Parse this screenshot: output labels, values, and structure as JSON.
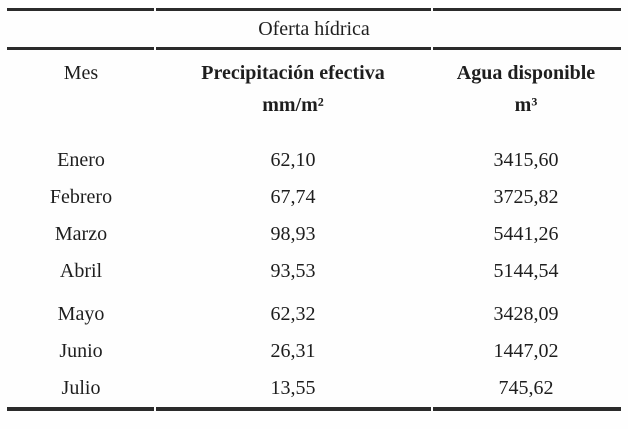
{
  "table": {
    "title": "Oferta hídrica",
    "columns": {
      "mes": {
        "label": "Mes",
        "unit": ""
      },
      "precipitacion": {
        "label": "Precipitación efectiva",
        "unit": "mm/m²"
      },
      "agua": {
        "label": "Agua disponible",
        "unit": "m³"
      }
    },
    "rows": [
      {
        "mes": "Enero",
        "precipitacion": "62,10",
        "agua": "3415,60"
      },
      {
        "mes": "Febrero",
        "precipitacion": "67,74",
        "agua": "3725,82"
      },
      {
        "mes": "Marzo",
        "precipitacion": "98,93",
        "agua": "5441,26"
      },
      {
        "mes": "Abril",
        "precipitacion": "93,53",
        "agua": "5144,54"
      },
      {
        "mes": "Mayo",
        "precipitacion": "62,32",
        "agua": "3428,09"
      },
      {
        "mes": "Junio",
        "precipitacion": "26,31",
        "agua": "1447,02"
      },
      {
        "mes": "Julio",
        "precipitacion": "13,55",
        "agua": "745,62"
      }
    ]
  },
  "colors": {
    "text": "#1e1e1e",
    "rule": "#2b2b2b",
    "background": "#fefefe"
  },
  "chart_data": {
    "type": "table",
    "title": "Oferta hídrica",
    "categories": [
      "Enero",
      "Febrero",
      "Marzo",
      "Abril",
      "Mayo",
      "Junio",
      "Julio"
    ],
    "series": [
      {
        "name": "Precipitación efectiva mm/m²",
        "values": [
          62.1,
          67.74,
          98.93,
          93.53,
          62.32,
          26.31,
          13.55
        ]
      },
      {
        "name": "Agua disponible m³",
        "values": [
          3415.6,
          3725.82,
          5441.26,
          5144.54,
          3428.09,
          1447.02,
          745.62
        ]
      }
    ]
  }
}
